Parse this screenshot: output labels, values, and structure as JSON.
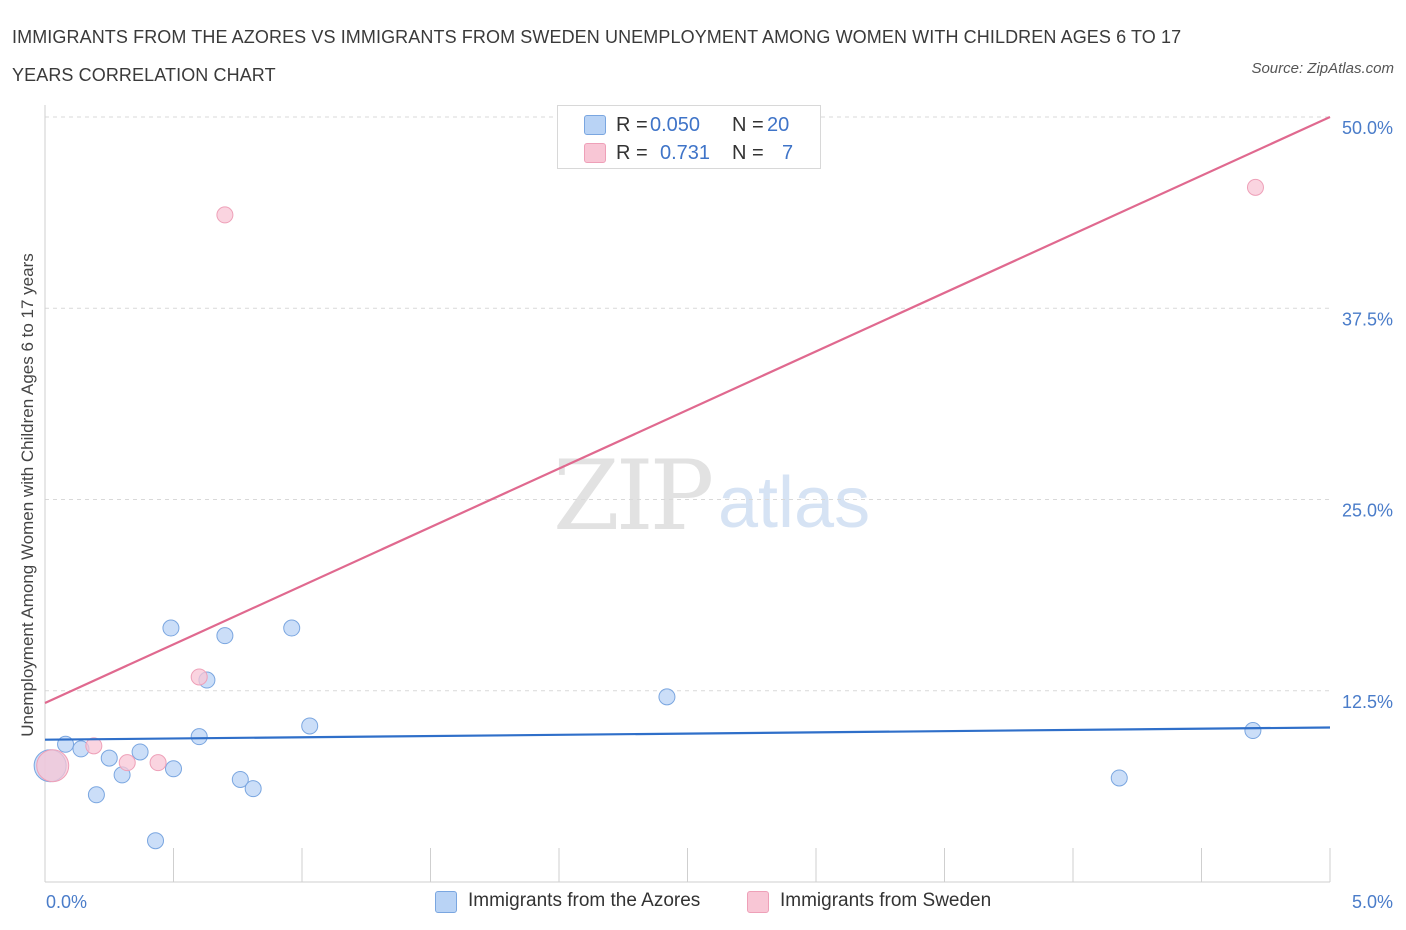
{
  "header": {
    "title": "IMMIGRANTS FROM THE AZORES VS IMMIGRANTS FROM SWEDEN UNEMPLOYMENT AMONG WOMEN WITH CHILDREN AGES 6 TO 17 YEARS CORRELATION CHART",
    "source": "Source: ZipAtlas.com"
  },
  "watermark": {
    "zip": "ZIP",
    "atlas": "atlas"
  },
  "legend": {
    "azores": {
      "r_label": "R =",
      "r_value": "0.050",
      "n_label": "N =",
      "n_value": "20"
    },
    "sweden": {
      "r_label": "R =",
      "r_value": "0.731",
      "n_label": "N =",
      "n_value": "7"
    }
  },
  "bottom_legend": {
    "azores": "Immigrants from the Azores",
    "sweden": "Immigrants from Sweden"
  },
  "colors": {
    "azores_fill": "#b9d3f5",
    "azores_stroke": "#7aa6e0",
    "azores_line": "#2f6fc9",
    "sweden_fill": "#f8c6d5",
    "sweden_stroke": "#eea0b8",
    "sweden_line": "#e0698f",
    "grid": "#d9d9d9",
    "tick_text": "#4a7cc9"
  },
  "chart_data": {
    "type": "scatter",
    "title": "IMMIGRANTS FROM THE AZORES VS IMMIGRANTS FROM SWEDEN UNEMPLOYMENT AMONG WOMEN WITH CHILDREN AGES 6 TO 17 YEARS CORRELATION CHART",
    "xlabel": "",
    "ylabel": "Unemployment Among Women with Children Ages 6 to 17 years",
    "xlim": [
      0,
      5
    ],
    "ylim": [
      0,
      50
    ],
    "x_tick_labels": [
      "0.0%",
      "5.0%"
    ],
    "y_ticks": [
      12.5,
      25.0,
      37.5,
      50.0
    ],
    "y_tick_labels": [
      "12.5%",
      "25.0%",
      "37.5%",
      "50.0%"
    ],
    "grid": true,
    "legend_position": "top-center",
    "series": [
      {
        "name": "Immigrants from the Azores",
        "R": 0.05,
        "N": 20,
        "points": [
          {
            "x": 0.02,
            "y": 7.6,
            "size": "large"
          },
          {
            "x": 0.08,
            "y": 9.0
          },
          {
            "x": 0.14,
            "y": 8.7
          },
          {
            "x": 0.2,
            "y": 5.7
          },
          {
            "x": 0.25,
            "y": 8.1
          },
          {
            "x": 0.3,
            "y": 7.0
          },
          {
            "x": 0.37,
            "y": 8.5
          },
          {
            "x": 0.43,
            "y": 2.7
          },
          {
            "x": 0.49,
            "y": 16.6
          },
          {
            "x": 0.5,
            "y": 7.4
          },
          {
            "x": 0.6,
            "y": 9.5
          },
          {
            "x": 0.7,
            "y": 16.1
          },
          {
            "x": 0.63,
            "y": 13.2
          },
          {
            "x": 0.76,
            "y": 6.7
          },
          {
            "x": 0.81,
            "y": 6.1
          },
          {
            "x": 0.96,
            "y": 16.6
          },
          {
            "x": 1.03,
            "y": 10.2
          },
          {
            "x": 2.42,
            "y": 12.1
          },
          {
            "x": 4.18,
            "y": 6.8
          },
          {
            "x": 4.7,
            "y": 9.9
          }
        ],
        "trend": {
          "x": [
            0,
            5
          ],
          "y": [
            9.3,
            10.1
          ]
        }
      },
      {
        "name": "Immigrants from Sweden",
        "R": 0.731,
        "N": 7,
        "points": [
          {
            "x": 0.03,
            "y": 7.6,
            "size": "large"
          },
          {
            "x": 0.19,
            "y": 8.9
          },
          {
            "x": 0.32,
            "y": 7.8
          },
          {
            "x": 0.44,
            "y": 7.8
          },
          {
            "x": 0.6,
            "y": 13.4
          },
          {
            "x": 0.7,
            "y": 43.6
          },
          {
            "x": 4.71,
            "y": 45.4
          }
        ],
        "trend": {
          "x": [
            0,
            5
          ],
          "y": [
            11.7,
            50.0
          ]
        }
      }
    ]
  }
}
